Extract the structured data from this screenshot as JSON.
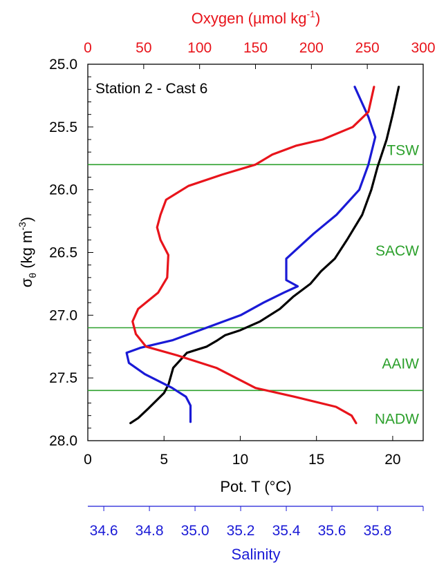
{
  "chart_data": {
    "type": "line",
    "annotation": "Station 2 - Cast 6",
    "y_axis": {
      "label": "σθ (kg m-3)",
      "label_main": "σ",
      "label_sub": "θ",
      "label_rest": " (kg m",
      "label_sup": "-3",
      "label_end": ")",
      "range": [
        25.0,
        28.0
      ],
      "ticks": [
        "25.0",
        "25.5",
        "26.0",
        "26.5",
        "27.0",
        "27.5",
        "28.0"
      ],
      "inverted": true
    },
    "x_axis_bottom": {
      "label": "Pot. T (°C)",
      "range": [
        0,
        22
      ],
      "ticks": [
        "0",
        "5",
        "10",
        "15",
        "20"
      ],
      "color": "#000000"
    },
    "x_axis_top": {
      "label": "Oxygen (µmol kg-1)",
      "label_pre": "Oxygen (",
      "label_mu": "µ",
      "label_mid": "mol kg",
      "label_sup": "-1",
      "label_end": ")",
      "range": [
        0,
        300
      ],
      "ticks": [
        "0",
        "50",
        "100",
        "150",
        "200",
        "250",
        "300"
      ],
      "color": "#e8141b"
    },
    "x_axis_salinity": {
      "label": "Salinity",
      "range": [
        34.53,
        36.0
      ],
      "ticks": [
        "34.6",
        "34.8",
        "35.0",
        "35.2",
        "35.4",
        "35.6",
        "35.8"
      ],
      "color": "#1a1ad6"
    },
    "water_masses": [
      {
        "name": "TSW",
        "boundary": 25.8,
        "label_sigma": 25.68
      },
      {
        "name": "SACW",
        "boundary": 27.1,
        "label_sigma": 26.48
      },
      {
        "name": "AAIW",
        "boundary": 27.6,
        "label_sigma": 27.38
      },
      {
        "name": "NADW",
        "boundary": null,
        "label_sigma": 27.82
      }
    ],
    "boundary_color": "#2ca02c",
    "series": [
      {
        "axis": "temperature",
        "color": "#000000",
        "points": [
          [
            20.4,
            25.18
          ],
          [
            20.0,
            25.4
          ],
          [
            19.6,
            25.6
          ],
          [
            19.0,
            25.82
          ],
          [
            18.6,
            26.0
          ],
          [
            18.0,
            26.2
          ],
          [
            17.0,
            26.4
          ],
          [
            16.2,
            26.55
          ],
          [
            15.3,
            26.65
          ],
          [
            14.6,
            26.75
          ],
          [
            13.5,
            26.85
          ],
          [
            12.6,
            26.95
          ],
          [
            11.3,
            27.05
          ],
          [
            10.0,
            27.12
          ],
          [
            9.0,
            27.16
          ],
          [
            8.5,
            27.2
          ],
          [
            7.8,
            27.25
          ],
          [
            6.5,
            27.3
          ],
          [
            5.6,
            27.42
          ],
          [
            5.3,
            27.55
          ],
          [
            5.0,
            27.62
          ],
          [
            4.5,
            27.68
          ],
          [
            4.0,
            27.74
          ],
          [
            3.3,
            27.82
          ],
          [
            2.8,
            27.86
          ]
        ]
      },
      {
        "axis": "salinity",
        "color": "#1a1ad6",
        "points": [
          [
            35.7,
            25.18
          ],
          [
            35.76,
            25.42
          ],
          [
            35.79,
            25.58
          ],
          [
            35.76,
            25.8
          ],
          [
            35.72,
            26.0
          ],
          [
            35.62,
            26.2
          ],
          [
            35.52,
            26.35
          ],
          [
            35.46,
            26.45
          ],
          [
            35.4,
            26.55
          ],
          [
            35.4,
            26.72
          ],
          [
            35.45,
            26.77
          ],
          [
            35.39,
            26.82
          ],
          [
            35.3,
            26.9
          ],
          [
            35.2,
            27.0
          ],
          [
            35.05,
            27.1
          ],
          [
            34.9,
            27.2
          ],
          [
            34.76,
            27.26
          ],
          [
            34.7,
            27.3
          ],
          [
            34.71,
            27.38
          ],
          [
            34.78,
            27.47
          ],
          [
            34.9,
            27.58
          ],
          [
            34.96,
            27.65
          ],
          [
            34.98,
            27.72
          ],
          [
            34.98,
            27.85
          ]
        ]
      },
      {
        "axis": "oxygen",
        "color": "#e8141b",
        "points": [
          [
            256,
            25.18
          ],
          [
            251,
            25.38
          ],
          [
            237,
            25.5
          ],
          [
            210,
            25.6
          ],
          [
            186,
            25.65
          ],
          [
            165,
            25.72
          ],
          [
            150,
            25.8
          ],
          [
            120,
            25.88
          ],
          [
            90,
            25.97
          ],
          [
            70,
            26.08
          ],
          [
            65,
            26.2
          ],
          [
            62,
            26.3
          ],
          [
            65,
            26.4
          ],
          [
            72,
            26.52
          ],
          [
            71,
            26.7
          ],
          [
            63,
            26.82
          ],
          [
            45,
            26.95
          ],
          [
            40,
            27.05
          ],
          [
            43,
            27.15
          ],
          [
            52,
            27.25
          ],
          [
            80,
            27.32
          ],
          [
            115,
            27.42
          ],
          [
            150,
            27.58
          ],
          [
            185,
            27.65
          ],
          [
            222,
            27.73
          ],
          [
            236,
            27.8
          ],
          [
            240,
            27.86
          ]
        ]
      }
    ]
  }
}
